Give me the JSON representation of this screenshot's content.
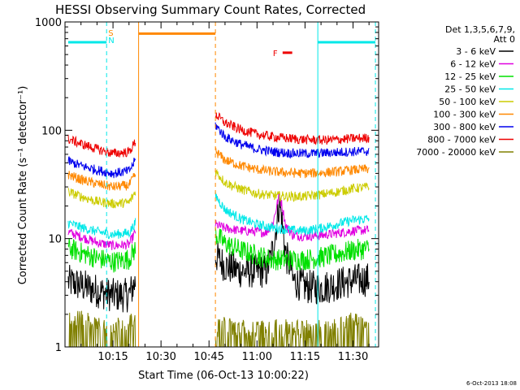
{
  "chart_data": {
    "type": "line",
    "title": "HESSI Observing Summary Count Rates, Corrected",
    "xlabel": "Start Time (06-Oct-13 10:00:22)",
    "ylabel": "Corrected Count Rate (s⁻¹ detector⁻¹)",
    "y_scale": "log",
    "ylim": [
      1,
      1000
    ],
    "xlim": [
      "10:00",
      "11:38"
    ],
    "x_ticks": [
      "10:15",
      "10:30",
      "10:45",
      "11:00",
      "11:15",
      "11:30"
    ],
    "y_ticks": [
      "1",
      "10",
      "100",
      "1000"
    ],
    "timestamp": "6-Oct-2013 18:08",
    "legend": {
      "placement": "right",
      "header_lines": [
        "Det 1,3,5,6,7,9,",
        "Att 0"
      ]
    },
    "series": [
      {
        "name": "3 - 6 keV",
        "color": "#000000",
        "x": [
          "10:01",
          "10:05",
          "10:10",
          "10:15",
          "10:20",
          "10:22",
          "10:47",
          "10:50",
          "10:55",
          "11:00",
          "11:05",
          "11:10",
          "11:15",
          "11:20",
          "11:25",
          "11:30",
          "11:35"
        ],
        "y": [
          4.0,
          3.7,
          3.3,
          3.0,
          3.0,
          4.0,
          7.0,
          5.6,
          5.0,
          5.0,
          5.0,
          4.3,
          3.6,
          3.5,
          3.8,
          4.1,
          4.2
        ]
      },
      {
        "name": "6 - 12 keV",
        "color": "#e000e0",
        "x": [
          "10:01",
          "10:05",
          "10:10",
          "10:15",
          "10:20",
          "10:22",
          "10:47",
          "10:50",
          "10:55",
          "11:00",
          "11:05",
          "11:10",
          "11:15",
          "11:20",
          "11:25",
          "11:30",
          "11:35"
        ],
        "y": [
          11.5,
          10.4,
          9.2,
          8.6,
          8.8,
          11.5,
          13.5,
          12.5,
          11.8,
          11.6,
          11.2,
          10.8,
          10.5,
          10.7,
          11.2,
          11.8,
          12.0
        ]
      },
      {
        "name": "12 - 25 keV",
        "color": "#00e000",
        "x": [
          "10:01",
          "10:05",
          "10:10",
          "10:15",
          "10:20",
          "10:22",
          "10:47",
          "10:50",
          "10:55",
          "11:00",
          "11:05",
          "11:10",
          "11:15",
          "11:20",
          "11:25",
          "11:30",
          "11:35"
        ],
        "y": [
          8.2,
          7.4,
          6.6,
          6.1,
          6.5,
          8.0,
          11.0,
          9.0,
          7.8,
          7.0,
          6.4,
          6.4,
          6.4,
          6.7,
          7.2,
          7.8,
          8.1
        ]
      },
      {
        "name": "25 - 50 keV",
        "color": "#00e8e8",
        "x": [
          "10:01",
          "10:05",
          "10:10",
          "10:15",
          "10:20",
          "10:22",
          "10:47",
          "10:50",
          "10:55",
          "11:00",
          "11:05",
          "11:10",
          "11:15",
          "11:20",
          "11:25",
          "11:30",
          "11:35"
        ],
        "y": [
          14.0,
          12.7,
          11.6,
          10.9,
          11.3,
          14.0,
          25.0,
          18.5,
          15.2,
          13.5,
          12.6,
          12.0,
          11.8,
          12.5,
          13.6,
          14.8,
          15.3
        ]
      },
      {
        "name": "50 - 100 keV",
        "color": "#cccc00",
        "x": [
          "10:01",
          "10:05",
          "10:10",
          "10:15",
          "10:20",
          "10:22",
          "10:47",
          "10:50",
          "10:55",
          "11:00",
          "11:05",
          "11:10",
          "11:15",
          "11:20",
          "11:25",
          "11:30",
          "11:35"
        ],
        "y": [
          27.0,
          24.5,
          22.0,
          21.0,
          21.5,
          27.0,
          42.0,
          33.0,
          28.5,
          26.0,
          25.0,
          24.5,
          24.5,
          25.5,
          27.0,
          29.0,
          30.0
        ]
      },
      {
        "name": "100 - 300 keV",
        "color": "#ff8800",
        "x": [
          "10:01",
          "10:05",
          "10:10",
          "10:15",
          "10:20",
          "10:22",
          "10:47",
          "10:50",
          "10:55",
          "11:00",
          "11:05",
          "11:10",
          "11:15",
          "11:20",
          "11:25",
          "11:30",
          "11:35"
        ],
        "y": [
          39.0,
          35.0,
          32.0,
          30.0,
          31.0,
          39.0,
          64.0,
          53.0,
          47.0,
          43.5,
          41.5,
          40.5,
          40.0,
          40.5,
          41.5,
          43.0,
          44.0
        ]
      },
      {
        "name": "300 - 800 keV",
        "color": "#0000ee",
        "x": [
          "10:01",
          "10:05",
          "10:10",
          "10:15",
          "10:20",
          "10:22",
          "10:47",
          "10:50",
          "10:55",
          "11:00",
          "11:05",
          "11:10",
          "11:15",
          "11:20",
          "11:25",
          "11:30",
          "11:35"
        ],
        "y": [
          52.0,
          47.0,
          43.0,
          40.0,
          42.0,
          53.0,
          112.0,
          87.0,
          74.0,
          67.0,
          63.5,
          61.5,
          61.0,
          61.5,
          62.5,
          63.5,
          64.0
        ]
      },
      {
        "name": "800 - 7000 keV",
        "color": "#ee0000",
        "x": [
          "10:01",
          "10:05",
          "10:10",
          "10:15",
          "10:20",
          "10:22",
          "10:47",
          "10:50",
          "10:55",
          "11:00",
          "11:05",
          "11:10",
          "11:15",
          "11:20",
          "11:25",
          "11:30",
          "11:35"
        ],
        "y": [
          83.0,
          75.0,
          67.0,
          61.0,
          63.0,
          78.0,
          140.0,
          117.0,
          101.0,
          92.0,
          87.0,
          84.0,
          82.0,
          81.0,
          82.0,
          84.0,
          85.0
        ]
      },
      {
        "name": "7000 - 20000 keV",
        "color": "#808000",
        "x": [
          "10:01",
          "10:05",
          "10:10",
          "10:15",
          "10:20",
          "10:22",
          "10:47",
          "10:50",
          "10:55",
          "11:00",
          "11:05",
          "11:10",
          "11:15",
          "11:20",
          "11:25",
          "11:30",
          "11:35"
        ],
        "y": [
          1.5,
          1.6,
          1.4,
          1.3,
          1.4,
          1.5,
          1.2,
          1.3,
          1.2,
          1.2,
          1.2,
          1.2,
          1.2,
          1.2,
          1.3,
          1.6,
          1.4
        ]
      }
    ],
    "flare_peak": {
      "x": [
        "11:03",
        "11:05",
        "11:06",
        "11:07",
        "11:08",
        "11:09",
        "11:11"
      ],
      "y_3_6": [
        5.0,
        8.0,
        13.0,
        22.0,
        13.0,
        7.0,
        5.0
      ],
      "y_6_12": [
        11.5,
        14.0,
        19.0,
        26.0,
        19.0,
        13.0,
        11.0
      ]
    },
    "annotations": {
      "night": [
        {
          "start": "10:01",
          "end": "10:13",
          "level": 650,
          "color": "#00e8e8"
        },
        {
          "start": "11:19",
          "end": "11:37",
          "level": 650,
          "color": "#00e8e8"
        }
      ],
      "saa": {
        "start": "10:23",
        "end": "10:47",
        "level": 780,
        "color": "#ff8800"
      },
      "flare_marker": {
        "label": "F",
        "start": "11:08",
        "end": "11:11",
        "level": 520,
        "color": "#ee0000"
      },
      "saa_label": {
        "text": "S",
        "color": "#ff8800"
      },
      "night_label": {
        "text": "N",
        "color": "#00e8e8"
      },
      "vlines": [
        {
          "x": "10:13",
          "color": "#00e8e8",
          "style": "dashed"
        },
        {
          "x": "10:23",
          "color": "#ff8800",
          "style": "solid"
        },
        {
          "x": "10:47",
          "color": "#ff8800",
          "style": "dashed"
        },
        {
          "x": "11:19",
          "color": "#00e8e8",
          "style": "solid"
        },
        {
          "x": "11:37",
          "color": "#00e8e8",
          "style": "dashed"
        }
      ]
    }
  }
}
